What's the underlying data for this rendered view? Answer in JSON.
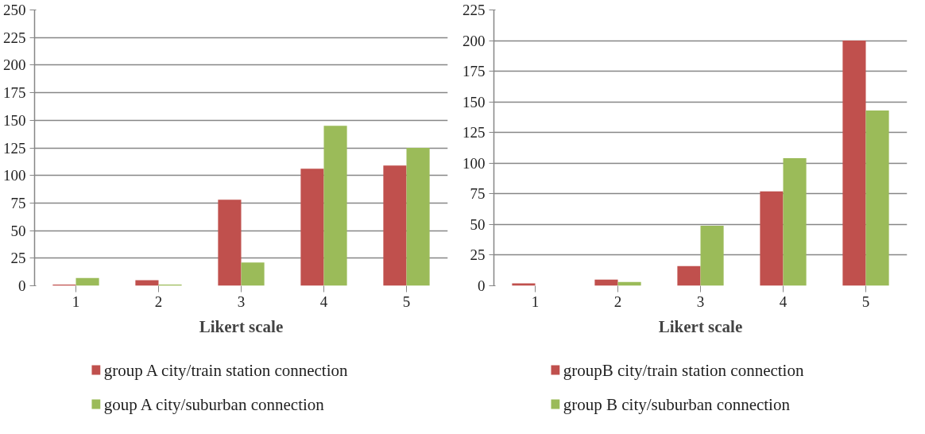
{
  "chart_data": [
    {
      "type": "bar",
      "xlabel": "Likert scale",
      "categories": [
        "1",
        "2",
        "3",
        "4",
        "5"
      ],
      "ylim": [
        0,
        250
      ],
      "yticks": [
        0,
        25,
        50,
        75,
        100,
        125,
        150,
        175,
        200,
        225,
        250
      ],
      "grid": "y",
      "legend": "bottom",
      "series": [
        {
          "name": "group A city/train station connection",
          "color": "#c0504d",
          "values": [
            1,
            5,
            78,
            106,
            109
          ]
        },
        {
          "name": "goup A city/suburban connection",
          "color": "#9bbb59",
          "values": [
            7,
            1,
            21,
            145,
            125
          ]
        }
      ]
    },
    {
      "type": "bar",
      "xlabel": "Likert scale",
      "categories": [
        "1",
        "2",
        "3",
        "4",
        "5"
      ],
      "ylim": [
        0,
        225
      ],
      "yticks": [
        0,
        25,
        50,
        75,
        100,
        125,
        150,
        175,
        200,
        225
      ],
      "grid": "y",
      "legend": "bottom",
      "series": [
        {
          "name": "groupB city/train station connection",
          "color": "#c0504d",
          "values": [
            2,
            5,
            16,
            77,
            200
          ]
        },
        {
          "name": "group B city/suburban connection",
          "color": "#9bbb59",
          "values": [
            0,
            3,
            49,
            104,
            143
          ]
        }
      ]
    }
  ]
}
